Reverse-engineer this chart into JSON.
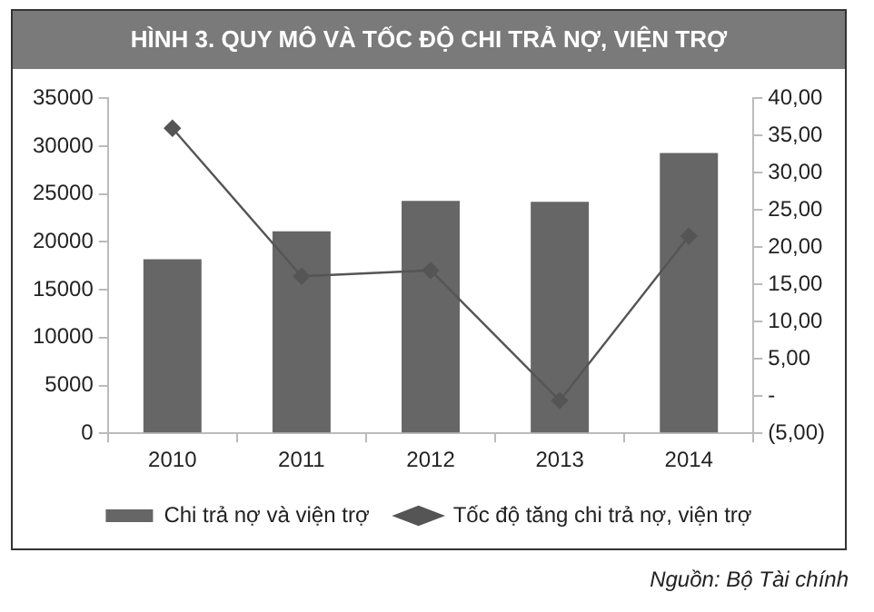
{
  "chart_data": {
    "type": "bar",
    "title": "HÌNH 3. QUY MÔ VÀ TỐC ĐỘ CHI TRẢ NỢ, VIỆN TRỢ",
    "categories": [
      "2010",
      "2011",
      "2012",
      "2013",
      "2014"
    ],
    "series": [
      {
        "name": "Chi trả nợ và viện trợ",
        "color": "#666666",
        "values": [
          18200,
          21100,
          24300,
          24200,
          29300
        ]
      },
      {
        "name": "Tốc độ tăng chi trả nợ, viện trợ",
        "type": "line",
        "axis": "y2",
        "color": "#555555",
        "values": [
          36.0,
          16.1,
          16.9,
          -0.6,
          21.5
        ]
      }
    ],
    "ylim": [
      0,
      35000
    ],
    "yticks": [
      0,
      5000,
      10000,
      15000,
      20000,
      25000,
      30000,
      35000
    ],
    "y2lim": [
      -5,
      40
    ],
    "y2ticks": [
      {
        "value": -5,
        "label": "(5,00)"
      },
      {
        "value": 0,
        "label": "-"
      },
      {
        "value": 5,
        "label": "5,00"
      },
      {
        "value": 10,
        "label": "10,00"
      },
      {
        "value": 15,
        "label": "15,00"
      },
      {
        "value": 20,
        "label": "20,00"
      },
      {
        "value": 25,
        "label": "25,00"
      },
      {
        "value": 30,
        "label": "30,00"
      },
      {
        "value": 35,
        "label": "35,00"
      },
      {
        "value": 40,
        "label": "40,00"
      }
    ],
    "grid": false,
    "legend": "bottom",
    "marker": "diamond",
    "line_style": "solid",
    "annotations": [
      "Nguồn: Bộ Tài chính"
    ]
  }
}
